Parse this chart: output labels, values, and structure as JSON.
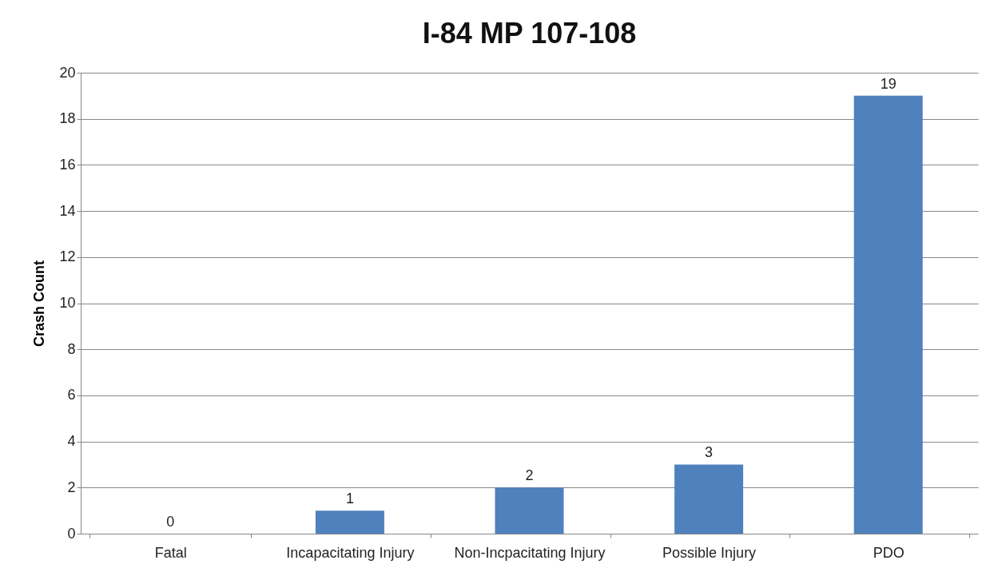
{
  "chart_data": {
    "type": "bar",
    "title": "I-84 MP 107-108",
    "ylabel": "Crash Count",
    "categories": [
      "Fatal",
      "Incapacitating Injury",
      "Non-Incpacitating Injury",
      "Possible Injury",
      "PDO"
    ],
    "values": [
      0,
      1,
      2,
      3,
      19
    ],
    "color": "#4f81bd",
    "ylim": [
      0,
      20
    ],
    "yticks": [
      0,
      2,
      4,
      6,
      8,
      10,
      12,
      14,
      16,
      18,
      20
    ],
    "grid": "y",
    "data_labels": true
  }
}
